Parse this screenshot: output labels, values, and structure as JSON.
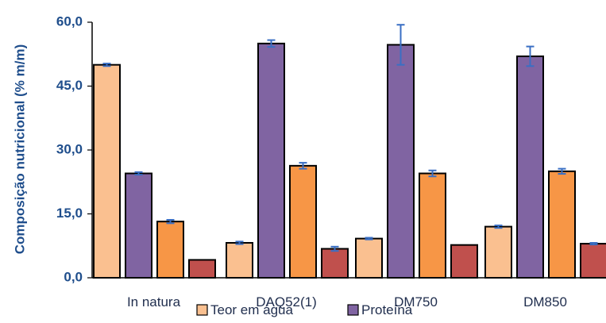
{
  "chart_data": {
    "type": "bar",
    "title": "",
    "xlabel": "",
    "ylabel": "Composição nutricional (% m/m)",
    "ylim": [
      0,
      60
    ],
    "yticks": [
      "0,0",
      "15,0",
      "30,0",
      "45,0",
      "60,0"
    ],
    "ytick_values": [
      0,
      15,
      30,
      45,
      60
    ],
    "grid": false,
    "legend_position": "bottom",
    "categories": [
      "In natura",
      "DAQ52(1)",
      "DM750",
      "DM850"
    ],
    "series": [
      {
        "name": "Teor em água",
        "color": "#fac090",
        "values": [
          50.0,
          8.2,
          9.2,
          12.0
        ],
        "errors": [
          0.3,
          0.3,
          0.2,
          0.3
        ]
      },
      {
        "name": "Proteína",
        "color": "#8064a2",
        "values": [
          24.5,
          55.0,
          54.7,
          52.0
        ],
        "errors": [
          0.3,
          0.8,
          4.7,
          2.3
        ]
      },
      {
        "name": "",
        "color": "#f79646",
        "values": [
          13.2,
          26.3,
          24.5,
          25.0
        ],
        "errors": [
          0.4,
          0.7,
          0.7,
          0.6
        ]
      },
      {
        "name": "",
        "color": "#c0504d",
        "values": [
          4.2,
          6.8,
          7.7,
          8.0
        ],
        "errors": [
          0,
          0.5,
          0,
          0.2
        ]
      }
    ],
    "error_bar_color": "#3a6fc4"
  }
}
